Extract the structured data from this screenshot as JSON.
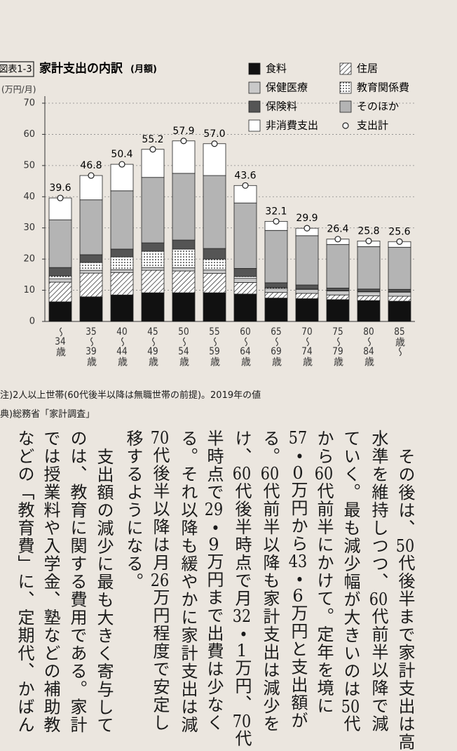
{
  "chart_data": {
    "type": "stacked_bar",
    "label": "図表1-3",
    "title": "家計支出の内訳",
    "title_suffix": "(月額)",
    "y_unit": "(万円/月)",
    "categories": [
      "〜34歳",
      "35〜39歳",
      "40〜44歳",
      "45〜49歳",
      "50〜54歳",
      "55〜59歳",
      "60〜64歳",
      "65〜69歳",
      "70〜74歳",
      "75〜79歳",
      "80〜84歳",
      "85歳〜"
    ],
    "series": [
      {
        "name": "食料",
        "color": "#111111",
        "values": [
          6.3,
          7.9,
          8.5,
          9.2,
          9.2,
          9.2,
          8.8,
          7.5,
          7.3,
          7.0,
          6.7,
          6.5
        ]
      },
      {
        "name": "住居",
        "color": "#ffffff",
        "pattern": "hatch",
        "values": [
          6.3,
          7.6,
          7.2,
          7.2,
          7.0,
          6.2,
          3.7,
          1.8,
          1.7,
          1.5,
          1.5,
          1.6
        ]
      },
      {
        "name": "保健医療",
        "color": "#c9c9c9",
        "values": [
          1.1,
          0.9,
          0.9,
          0.9,
          1.0,
          1.1,
          1.3,
          1.3,
          1.3,
          1.3,
          1.3,
          1.3
        ]
      },
      {
        "name": "教育関係費",
        "color": "#ffffff",
        "pattern": "dots",
        "values": [
          0.9,
          2.5,
          4.1,
          5.2,
          6.0,
          3.5,
          0.6,
          0.3,
          0.1,
          0.1,
          0.1,
          0.1
        ]
      },
      {
        "name": "保険料",
        "color": "#555555",
        "values": [
          2.7,
          2.5,
          2.5,
          2.7,
          2.9,
          3.4,
          2.6,
          1.5,
          1.3,
          0.8,
          0.8,
          0.8
        ]
      },
      {
        "name": "そのほか",
        "color": "#b4b4b4",
        "values": [
          15.3,
          17.6,
          18.7,
          21.0,
          21.4,
          23.4,
          21.0,
          16.8,
          15.8,
          14.0,
          13.6,
          13.5
        ]
      },
      {
        "name": "非消費支出",
        "color": "#ffffff",
        "values": [
          7.0,
          7.8,
          8.5,
          9.0,
          10.4,
          10.2,
          5.6,
          2.9,
          2.4,
          1.7,
          1.8,
          1.8
        ]
      }
    ],
    "totals": {
      "name": "支出計",
      "values": [
        39.6,
        46.8,
        50.4,
        55.2,
        57.9,
        57.0,
        43.6,
        32.1,
        29.9,
        26.4,
        25.8,
        25.6
      ],
      "value_labels": [
        "39.6",
        "46.8",
        "50.4",
        "55.2",
        "57.9",
        "57.0",
        "43.6",
        "32.1",
        "29.9",
        "26.4",
        "25.8",
        "25.6"
      ]
    },
    "ylim": [
      0,
      70
    ],
    "yticks": [
      0,
      10,
      20,
      30,
      40,
      50,
      60,
      70
    ],
    "grid": true,
    "legend": "top-right"
  },
  "notes": [
    "注)2人以上世帯(60代後半以降は無職世帯の前提)。2019年の値",
    "典)総務省「家計調査」"
  ],
  "body": {
    "columns": [
      "その後は、50代後半まで家計支出は高",
      "水準を維持しつつ、60代前半以降で減",
      "ていく。最も減少幅が大きいのは50代",
      "から60代前半にかけて。定年を境に",
      "57・0万円から43・6万円と支出額が",
      "る。60代前半以降も家計支出は減少を",
      "け、60代後半時点で月32・1万円、70代",
      "半時点で29・9万円まで出費は少なく",
      "る。それ以降も緩やかに家計支出は減",
      "70代後半以降は月26万円程度で安定し",
      "移するようになる。",
      "支出額の減少に最も大きく寄与して",
      "のは、教育に関する費用である。家計",
      "では授業料や入学金、塾などの補助教",
      "などの「教育費」に、定期代、かばん"
    ]
  }
}
